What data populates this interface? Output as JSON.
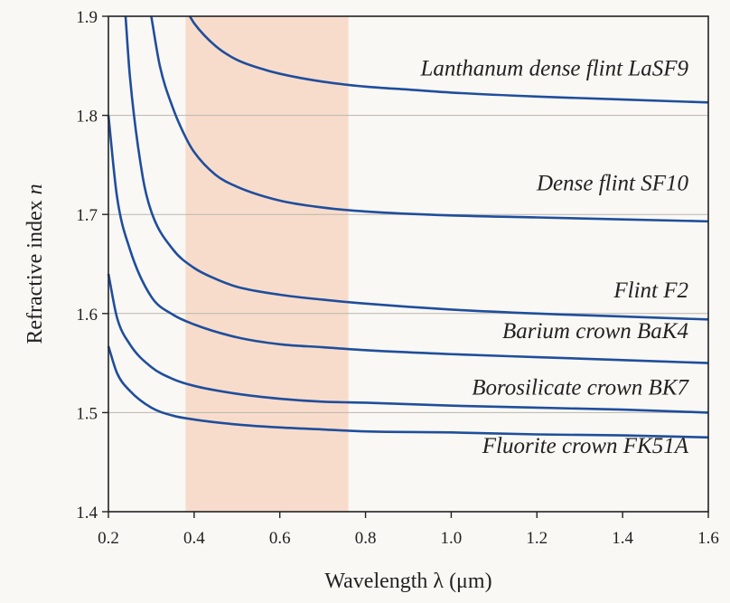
{
  "chart_data": {
    "type": "line",
    "title": "",
    "xlabel": "Wavelength λ (μm)",
    "ylabel_text": "Refractive index",
    "ylabel_symbol": "n",
    "xlim": [
      0.2,
      1.6
    ],
    "ylim": [
      1.4,
      1.9
    ],
    "xticks": [
      0.2,
      0.4,
      0.6,
      0.8,
      1.0,
      1.2,
      1.4,
      1.6
    ],
    "xtick_labels": [
      "0.2",
      "0.4",
      "0.6",
      "0.8",
      "1.0",
      "1.2",
      "1.4",
      "1.6"
    ],
    "yticks": [
      1.4,
      1.5,
      1.6,
      1.7,
      1.8,
      1.9
    ],
    "ytick_labels": [
      "1.4",
      "1.5",
      "1.6",
      "1.7",
      "1.8",
      "1.9"
    ],
    "grid": "horizontal",
    "visible_band": {
      "x_range": [
        0.38,
        0.76
      ],
      "color": "#f8dccb"
    },
    "colors": {
      "series": "#1f4e9c",
      "background": "#faf8f4",
      "grid": "#b9b6b0"
    },
    "series": [
      {
        "name": "Lanthanum dense flint LaSF9",
        "x": [
          0.39,
          0.4,
          0.45,
          0.5,
          0.55,
          0.6,
          0.7,
          0.8,
          0.9,
          1.0,
          1.2,
          1.4,
          1.6
        ],
        "y": [
          1.9,
          1.893,
          1.87,
          1.856,
          1.848,
          1.842,
          1.834,
          1.829,
          1.826,
          1.823,
          1.819,
          1.816,
          1.813
        ]
      },
      {
        "name": "Dense flint SF10",
        "x": [
          0.3,
          0.32,
          0.35,
          0.38,
          0.4,
          0.45,
          0.5,
          0.6,
          0.7,
          0.8,
          1.0,
          1.2,
          1.4,
          1.6
        ],
        "y": [
          1.9,
          1.85,
          1.808,
          1.778,
          1.763,
          1.74,
          1.728,
          1.714,
          1.707,
          1.703,
          1.699,
          1.697,
          1.695,
          1.693
        ]
      },
      {
        "name": "Flint F2",
        "x": [
          0.24,
          0.25,
          0.28,
          0.3,
          0.35,
          0.4,
          0.45,
          0.5,
          0.6,
          0.7,
          0.8,
          1.0,
          1.2,
          1.4,
          1.6
        ],
        "y": [
          1.9,
          1.84,
          1.738,
          1.703,
          1.665,
          1.646,
          1.635,
          1.627,
          1.619,
          1.614,
          1.61,
          1.604,
          1.6,
          1.597,
          1.594
        ]
      },
      {
        "name": "Barium crown BaK4",
        "x": [
          0.2,
          0.22,
          0.25,
          0.3,
          0.35,
          0.4,
          0.5,
          0.6,
          0.7,
          0.8,
          1.0,
          1.2,
          1.4,
          1.6
        ],
        "y": [
          1.8,
          1.718,
          1.665,
          1.617,
          1.599,
          1.589,
          1.576,
          1.569,
          1.566,
          1.563,
          1.559,
          1.556,
          1.553,
          1.55
        ]
      },
      {
        "name": "Borosilicate crown BK7",
        "x": [
          0.2,
          0.22,
          0.25,
          0.3,
          0.35,
          0.4,
          0.5,
          0.6,
          0.7,
          0.8,
          1.0,
          1.2,
          1.4,
          1.6
        ],
        "y": [
          1.64,
          1.596,
          1.569,
          1.546,
          1.534,
          1.527,
          1.519,
          1.514,
          1.511,
          1.51,
          1.507,
          1.505,
          1.503,
          1.5
        ]
      },
      {
        "name": "Fluorite crown FK51A",
        "x": [
          0.2,
          0.22,
          0.25,
          0.3,
          0.35,
          0.4,
          0.5,
          0.6,
          0.7,
          0.8,
          1.0,
          1.2,
          1.4,
          1.6
        ],
        "y": [
          1.567,
          1.54,
          1.522,
          1.505,
          1.497,
          1.493,
          1.488,
          1.485,
          1.483,
          1.481,
          1.48,
          1.478,
          1.477,
          1.475
        ]
      }
    ],
    "series_label_anchor_y": [
      1.832,
      1.716,
      1.608,
      1.567,
      1.51,
      1.451
    ]
  }
}
